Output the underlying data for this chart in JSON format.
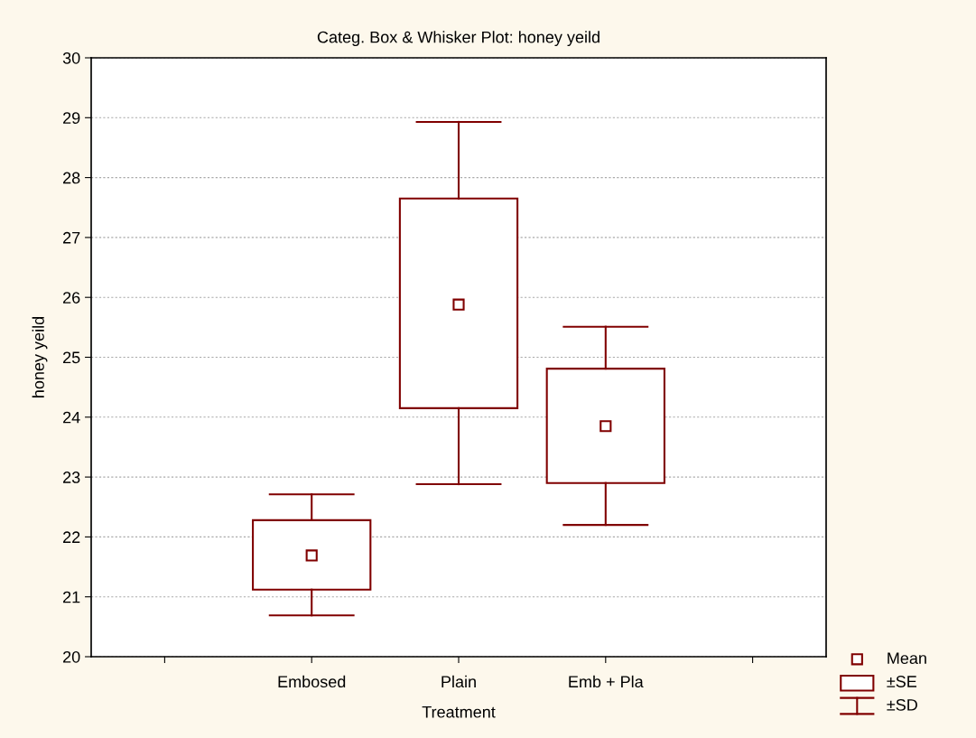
{
  "chart_data": {
    "type": "box",
    "title": "Categ. Box & Whisker Plot: honey yeild",
    "xlabel": "Treatment",
    "ylabel": "honey yeild",
    "categories": [
      null,
      "Embosed",
      "Plain",
      "Emb + Pla",
      null
    ],
    "boxes": [
      null,
      {
        "low": 20.69,
        "q1": 21.12,
        "q3": 22.28,
        "high": 22.71,
        "mean": 21.69
      },
      {
        "low": 22.88,
        "q1": 24.15,
        "q3": 27.65,
        "high": 28.93,
        "mean": 25.88
      },
      {
        "low": 22.2,
        "q1": 22.9,
        "q3": 24.81,
        "high": 25.51,
        "mean": 23.85
      },
      null
    ],
    "color": "#800000",
    "annotations": [
      "Mean",
      "±SE",
      "±SD"
    ],
    "ylim": [
      20,
      30
    ],
    "yticks": [
      20,
      21,
      22,
      23,
      24,
      25,
      26,
      27,
      28,
      29,
      30
    ],
    "grid": "y"
  }
}
